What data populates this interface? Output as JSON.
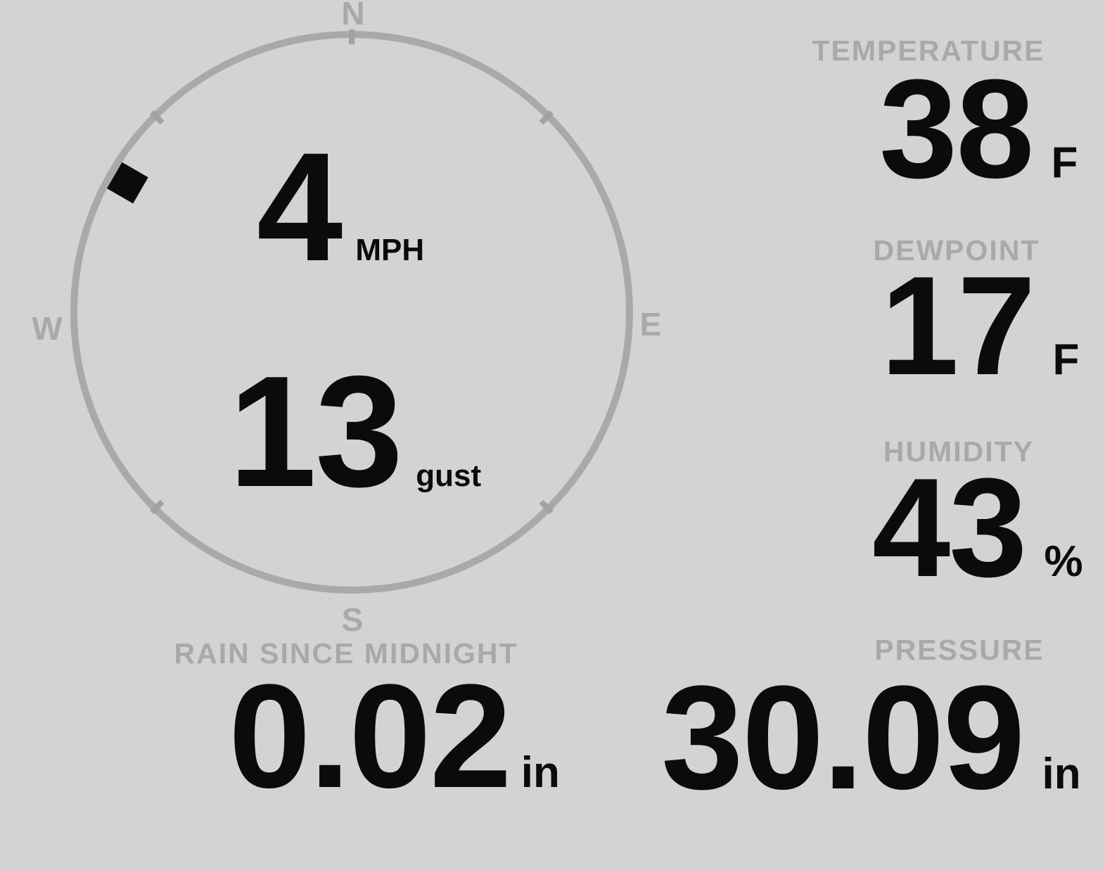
{
  "theme": {
    "background": "#d3d3d3",
    "muted_gray": "#a9a9a9",
    "value_black": "#0b0b0b"
  },
  "compass": {
    "cardinal": {
      "north": "N",
      "east": "E",
      "south": "S",
      "west": "W"
    },
    "wind_speed": {
      "value": "4",
      "unit": "MPH"
    },
    "wind_gust": {
      "value": "13",
      "unit": "gust"
    },
    "direction_degrees": 300
  },
  "readings": {
    "temperature": {
      "label": "TEMPERATURE",
      "value": "38",
      "unit": "F"
    },
    "dewpoint": {
      "label": "DEWPOINT",
      "value": "17",
      "unit": "F"
    },
    "humidity": {
      "label": "HUMIDITY",
      "value": "43",
      "unit": "%"
    },
    "rain": {
      "label": "RAIN SINCE MIDNIGHT",
      "value": "0.02",
      "unit": "in"
    },
    "pressure": {
      "label": "PRESSURE",
      "value": "30.09",
      "unit": "in"
    }
  }
}
